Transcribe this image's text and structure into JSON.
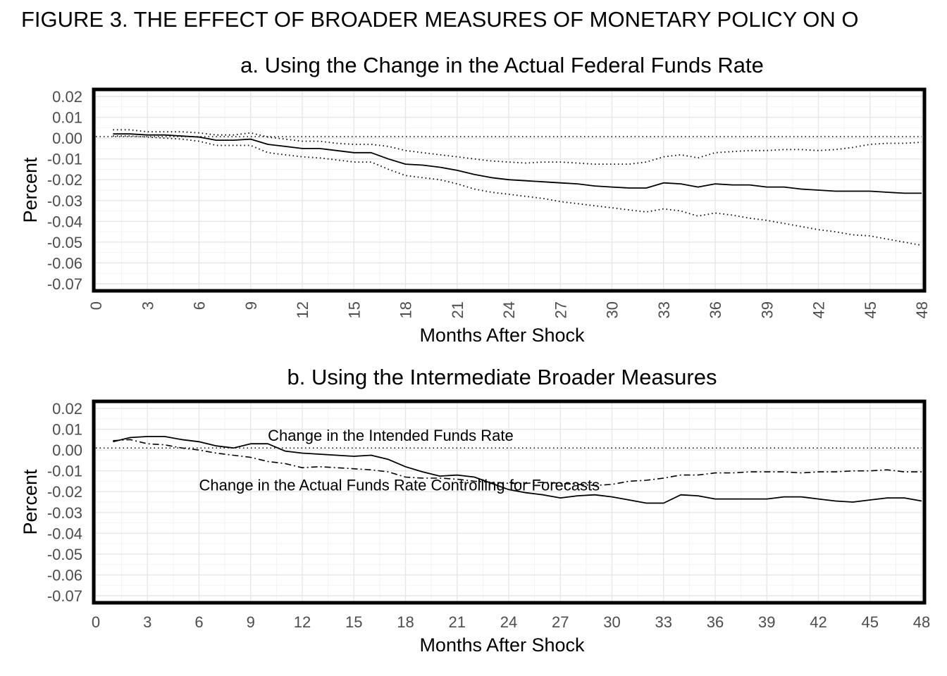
{
  "figure_title": "FIGURE 3. THE EFFECT OF BROADER MEASURES OF MONETARY POLICY ON O",
  "chart_data": [
    {
      "type": "line",
      "title": "a. Using the Change in the Actual Federal Funds Rate",
      "xlabel": "Months After Shock",
      "ylabel": "Percent",
      "xlim": [
        0,
        48
      ],
      "ylim": [
        -0.07,
        0.02
      ],
      "x_ticks": [
        "0",
        "3",
        "6",
        "9",
        "12",
        "15",
        "18",
        "21",
        "24",
        "27",
        "30",
        "33",
        "36",
        "39",
        "42",
        "45",
        "48"
      ],
      "y_ticks": [
        "0.02",
        "0.01",
        "0.00",
        "-0.01",
        "-0.02",
        "-0.03",
        "-0.04",
        "-0.05",
        "-0.06",
        "-0.07"
      ],
      "x_tick_rotation": "vertical",
      "grid": true,
      "series": [
        {
          "style": "zero-line",
          "x": [
            0,
            48
          ],
          "values": [
            0.0007,
            0.0007
          ]
        },
        {
          "style": "solid",
          "x": [
            1,
            2,
            3,
            4,
            5,
            6,
            7,
            8,
            9,
            10,
            11,
            12,
            13,
            14,
            15,
            16,
            17,
            18,
            19,
            20,
            21,
            22,
            23,
            24,
            25,
            26,
            27,
            28,
            29,
            30,
            31,
            32,
            33,
            34,
            35,
            36,
            37,
            38,
            39,
            40,
            41,
            42,
            43,
            44,
            45,
            46,
            47,
            48
          ],
          "values": [
            0.002,
            0.002,
            0.0015,
            0.0015,
            0.001,
            0.0005,
            -0.001,
            -0.001,
            -0.0005,
            -0.003,
            -0.004,
            -0.005,
            -0.005,
            -0.006,
            -0.007,
            -0.007,
            -0.01,
            -0.0125,
            -0.013,
            -0.014,
            -0.0155,
            -0.0175,
            -0.019,
            -0.02,
            -0.0205,
            -0.021,
            -0.0215,
            -0.022,
            -0.023,
            -0.0235,
            -0.024,
            -0.024,
            -0.0215,
            -0.022,
            -0.0235,
            -0.022,
            -0.0225,
            -0.0225,
            -0.0235,
            -0.0235,
            -0.0245,
            -0.025,
            -0.0255,
            -0.0255,
            -0.0255,
            -0.026,
            -0.0265,
            -0.0265
          ]
        },
        {
          "style": "dotted",
          "x": [
            1,
            2,
            3,
            4,
            5,
            6,
            7,
            8,
            9,
            10,
            11,
            12,
            13,
            14,
            15,
            16,
            17,
            18,
            19,
            20,
            21,
            22,
            23,
            24,
            25,
            26,
            27,
            28,
            29,
            30,
            31,
            32,
            33,
            34,
            35,
            36,
            37,
            38,
            39,
            40,
            41,
            42,
            43,
            44,
            45,
            46,
            47,
            48
          ],
          "values": [
            0.004,
            0.004,
            0.003,
            0.003,
            0.003,
            0.0025,
            0.0015,
            0.0015,
            0.0025,
            0.0005,
            -0.0005,
            -0.0015,
            -0.0015,
            -0.0025,
            -0.003,
            -0.003,
            -0.004,
            -0.006,
            -0.007,
            -0.008,
            -0.009,
            -0.01,
            -0.011,
            -0.0115,
            -0.012,
            -0.0115,
            -0.0115,
            -0.012,
            -0.0125,
            -0.0125,
            -0.0125,
            -0.0115,
            -0.009,
            -0.008,
            -0.0095,
            -0.007,
            -0.0065,
            -0.006,
            -0.006,
            -0.0055,
            -0.0055,
            -0.006,
            -0.0055,
            -0.0045,
            -0.003,
            -0.0025,
            -0.0025,
            -0.002
          ]
        },
        {
          "style": "dotted",
          "x": [
            1,
            2,
            3,
            4,
            5,
            6,
            7,
            8,
            9,
            10,
            11,
            12,
            13,
            14,
            15,
            16,
            17,
            18,
            19,
            20,
            21,
            22,
            23,
            24,
            25,
            26,
            27,
            28,
            29,
            30,
            31,
            32,
            33,
            34,
            35,
            36,
            37,
            38,
            39,
            40,
            41,
            42,
            43,
            44,
            45,
            46,
            47,
            48
          ],
          "values": [
            0.001,
            0.001,
            0.0005,
            0.0,
            -0.0005,
            -0.0015,
            -0.0035,
            -0.0035,
            -0.0035,
            -0.007,
            -0.008,
            -0.009,
            -0.0095,
            -0.0105,
            -0.0115,
            -0.0115,
            -0.015,
            -0.018,
            -0.019,
            -0.02,
            -0.022,
            -0.0245,
            -0.026,
            -0.027,
            -0.028,
            -0.029,
            -0.0305,
            -0.0315,
            -0.0325,
            -0.0335,
            -0.0345,
            -0.0355,
            -0.034,
            -0.035,
            -0.0375,
            -0.036,
            -0.037,
            -0.0385,
            -0.0395,
            -0.041,
            -0.0425,
            -0.044,
            -0.045,
            -0.0465,
            -0.047,
            -0.0485,
            -0.05,
            -0.0515
          ]
        }
      ]
    },
    {
      "type": "line",
      "title": "b. Using the Intermediate Broader Measures",
      "xlabel": "Months After Shock",
      "ylabel": "Percent",
      "xlim": [
        0,
        48
      ],
      "ylim": [
        -0.07,
        0.02
      ],
      "x_ticks": [
        "0",
        "3",
        "6",
        "9",
        "12",
        "15",
        "18",
        "21",
        "24",
        "27",
        "30",
        "33",
        "36",
        "39",
        "42",
        "45",
        "48"
      ],
      "y_ticks": [
        "0.02",
        "0.01",
        "0.00",
        "-0.01",
        "-0.02",
        "-0.03",
        "-0.04",
        "-0.05",
        "-0.06",
        "-0.07"
      ],
      "x_tick_rotation": "horizontal",
      "grid": true,
      "annotations": [
        {
          "text": "Change in the Intended Funds Rate",
          "x": 10,
          "y": 0.0045
        },
        {
          "text": "Change in the Actual Funds Rate Controlling for Forecasts",
          "x": 6,
          "y": -0.0195
        }
      ],
      "series": [
        {
          "style": "zero-line",
          "x": [
            0,
            48
          ],
          "values": [
            0.001,
            0.001
          ]
        },
        {
          "style": "solid",
          "x": [
            1,
            2,
            3,
            4,
            5,
            6,
            7,
            8,
            9,
            10,
            11,
            12,
            13,
            14,
            15,
            16,
            17,
            18,
            19,
            20,
            21,
            22,
            23,
            24,
            25,
            26,
            27,
            28,
            29,
            30,
            31,
            32,
            33,
            34,
            35,
            36,
            37,
            38,
            39,
            40,
            41,
            42,
            43,
            44,
            45,
            46,
            47,
            48
          ],
          "values": [
            0.004,
            0.006,
            0.0065,
            0.0065,
            0.005,
            0.004,
            0.002,
            0.001,
            0.003,
            0.003,
            -0.0005,
            -0.0015,
            -0.002,
            -0.0025,
            -0.003,
            -0.0025,
            -0.0045,
            -0.008,
            -0.0105,
            -0.0125,
            -0.012,
            -0.013,
            -0.016,
            -0.019,
            -0.0205,
            -0.0215,
            -0.023,
            -0.022,
            -0.0215,
            -0.0225,
            -0.024,
            -0.0255,
            -0.0255,
            -0.0215,
            -0.022,
            -0.0235,
            -0.0235,
            -0.0235,
            -0.0235,
            -0.0225,
            -0.0225,
            -0.0235,
            -0.0245,
            -0.025,
            -0.024,
            -0.023,
            -0.023,
            -0.0245
          ]
        },
        {
          "style": "dashdot",
          "x": [
            1,
            2,
            3,
            4,
            5,
            6,
            7,
            8,
            9,
            10,
            11,
            12,
            13,
            14,
            15,
            16,
            17,
            18,
            19,
            20,
            21,
            22,
            23,
            24,
            25,
            26,
            27,
            28,
            29,
            30,
            31,
            32,
            33,
            34,
            35,
            36,
            37,
            38,
            39,
            40,
            41,
            42,
            43,
            44,
            45,
            46,
            47,
            48
          ],
          "values": [
            0.0045,
            0.005,
            0.003,
            0.0025,
            0.001,
            0.0,
            -0.0015,
            -0.0025,
            -0.0035,
            -0.0055,
            -0.0065,
            -0.0085,
            -0.008,
            -0.0085,
            -0.009,
            -0.0095,
            -0.0105,
            -0.013,
            -0.0135,
            -0.0135,
            -0.014,
            -0.015,
            -0.0155,
            -0.016,
            -0.016,
            -0.0155,
            -0.016,
            -0.0165,
            -0.017,
            -0.0165,
            -0.015,
            -0.0145,
            -0.0135,
            -0.012,
            -0.012,
            -0.011,
            -0.011,
            -0.0105,
            -0.0105,
            -0.0105,
            -0.011,
            -0.0105,
            -0.0105,
            -0.01,
            -0.01,
            -0.0095,
            -0.0105,
            -0.0105
          ]
        }
      ]
    }
  ]
}
